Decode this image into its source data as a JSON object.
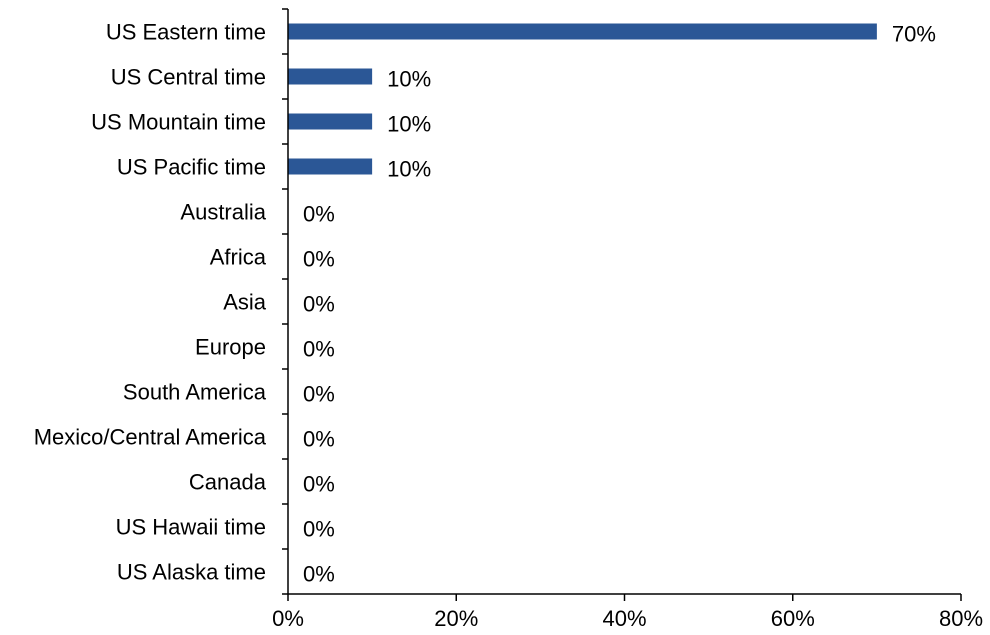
{
  "chart_data": {
    "type": "bar",
    "orientation": "horizontal",
    "title": "",
    "xlabel": "",
    "ylabel": "",
    "categories": [
      "US Eastern time",
      "US Central time",
      "US Mountain time",
      "US Pacific time",
      "Australia",
      "Africa",
      "Asia",
      "Europe",
      "South America",
      "Mexico/Central America",
      "Canada",
      "US Hawaii time",
      "US Alaska time"
    ],
    "values": [
      70,
      10,
      10,
      10,
      0,
      0,
      0,
      0,
      0,
      0,
      0,
      0,
      0
    ],
    "value_labels": [
      "70%",
      "10%",
      "10%",
      "10%",
      "0%",
      "0%",
      "0%",
      "0%",
      "0%",
      "0%",
      "0%",
      "0%",
      "0%"
    ],
    "xlim": [
      0,
      80
    ],
    "x_ticks": [
      0,
      20,
      40,
      60,
      80
    ],
    "x_tick_labels": [
      "0%",
      "20%",
      "40%",
      "60%",
      "80%"
    ],
    "bar_color": "#2B5796",
    "grid": false,
    "legend": "none"
  }
}
